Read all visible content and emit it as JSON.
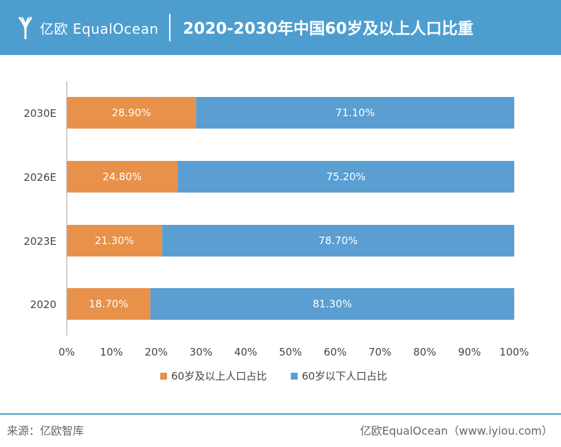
{
  "header": {
    "logo_text": "亿欧 EqualOcean",
    "title": "2020-2030年中国60岁及以上人口比重"
  },
  "colors": {
    "header_bg": "#4d9ecf",
    "series_60plus": "#e8914a",
    "series_under60": "#5b9ed2"
  },
  "chart_data": {
    "type": "bar",
    "orientation": "horizontal",
    "stacked": true,
    "categories": [
      "2030E",
      "2026E",
      "2023E",
      "2020"
    ],
    "series": [
      {
        "name": "60岁及以上人口占比",
        "values": [
          28.9,
          24.8,
          21.3,
          18.7
        ],
        "labels": [
          "28.90%",
          "24.80%",
          "21.30%",
          "18.70%"
        ]
      },
      {
        "name": "60岁以下人口占比",
        "values": [
          71.1,
          75.2,
          78.7,
          81.3
        ],
        "labels": [
          "71.10%",
          "75.20%",
          "78.70%",
          "81.30%"
        ]
      }
    ],
    "xlim": [
      0,
      100
    ],
    "xticks": [
      "0%",
      "10%",
      "20%",
      "30%",
      "40%",
      "50%",
      "60%",
      "70%",
      "80%",
      "90%",
      "100%"
    ],
    "grid": false,
    "legend_position": "bottom"
  },
  "footer": {
    "source": "来源：亿欧智库",
    "brand": "亿欧EqualOcean（www.iyiou.com）"
  }
}
